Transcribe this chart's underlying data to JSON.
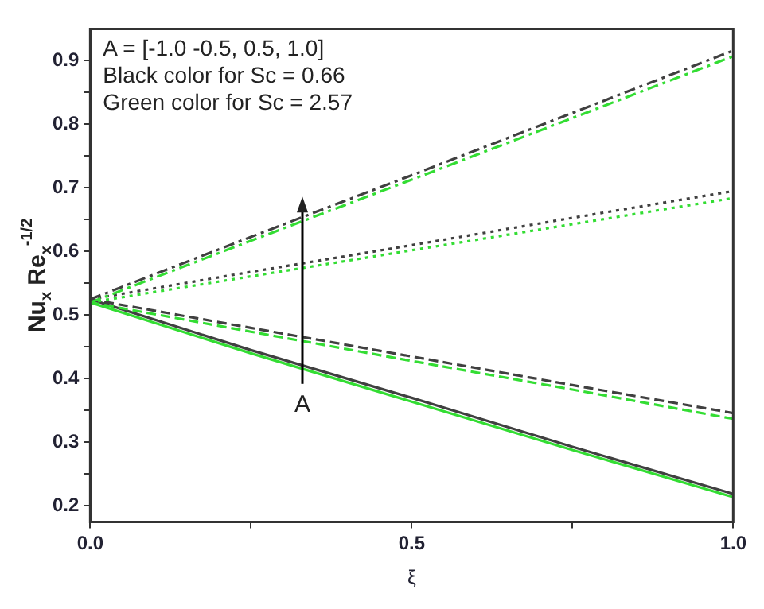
{
  "chart_data": {
    "type": "line",
    "xlabel": "ξ",
    "ylabel": "Nu$_{x}$ Re$_{x}$$^{-1/2}$",
    "x": [
      0,
      0.25,
      0.5,
      0.75,
      1
    ],
    "series": [
      {
        "color": "#404040",
        "line_style": "dashdot",
        "values": [
          0.525,
          0.623,
          0.72,
          0.818,
          0.916
        ]
      },
      {
        "color": "#33dd33",
        "line_style": "dashdot",
        "values": [
          0.52,
          0.617,
          0.713,
          0.81,
          0.907
        ]
      },
      {
        "color": "#404040",
        "line_style": "dotted",
        "values": [
          0.525,
          0.568,
          0.61,
          0.653,
          0.695
        ]
      },
      {
        "color": "#33dd33",
        "line_style": "dotted",
        "values": [
          0.52,
          0.561,
          0.602,
          0.643,
          0.684
        ]
      },
      {
        "color": "#404040",
        "line_style": "dashed",
        "values": [
          0.525,
          0.48,
          0.435,
          0.39,
          0.346
        ]
      },
      {
        "color": "#33dd33",
        "line_style": "dashed",
        "values": [
          0.52,
          0.474,
          0.428,
          0.383,
          0.337
        ]
      },
      {
        "color": "#404040",
        "line_style": "solid",
        "values": [
          0.525,
          0.445,
          0.37,
          0.293,
          0.219
        ]
      },
      {
        "color": "#33dd33",
        "line_style": "solid",
        "values": [
          0.52,
          0.44,
          0.364,
          0.288,
          0.214
        ]
      }
    ],
    "xlim": [
      0,
      1
    ],
    "xticks": [
      {
        "value": 0,
        "label": "0.0"
      },
      {
        "value": 0.25,
        "label": null
      },
      0.5,
      {
        "value": 0.75,
        "label": null
      },
      {
        "value": 1,
        "label": "1.0"
      }
    ],
    "ylim": [
      0.175,
      0.95
    ],
    "yticks": [
      0.2,
      {
        "value": 0.25,
        "label": null
      },
      0.3,
      {
        "value": 0.35,
        "label": null
      },
      0.4,
      {
        "value": 0.45,
        "label": null
      },
      0.5,
      {
        "value": 0.55,
        "label": null
      },
      0.6,
      {
        "value": 0.65,
        "label": null
      },
      0.7,
      {
        "value": 0.75,
        "label": null
      },
      0.8,
      {
        "value": 0.85,
        "label": null
      },
      0.9
    ],
    "annotations": [
      "A = [-1.0 -0.5, 0.5, 1.0]\nBlack color for Sc = 0.66\nGreen color for Sc = 2.57",
      "A"
    ],
    "grid": false,
    "legend": false,
    "marker": "none"
  }
}
